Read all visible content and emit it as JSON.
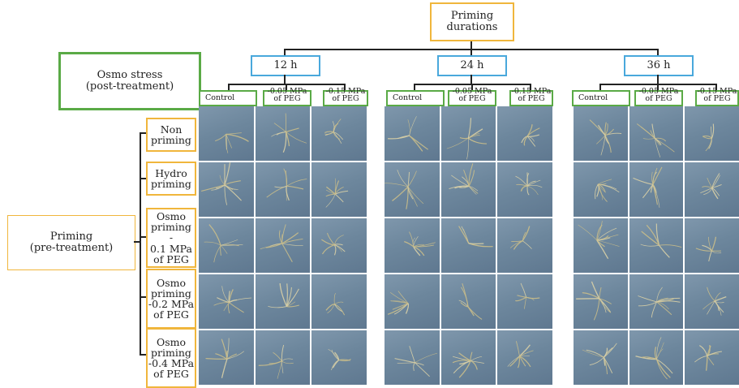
{
  "root": {
    "label_line1": "Priming",
    "label_line2": "durations"
  },
  "durations": [
    "12 h",
    "24 h",
    "36 h"
  ],
  "post_treatment": {
    "line1": "Osmo stress",
    "line2": "(post-treatment)"
  },
  "pre_treatment": {
    "line1": "Priming",
    "line2": "(pre-treatment)"
  },
  "stress_levels": {
    "control": "Control",
    "mpa005_line1": "-0.05 MPa",
    "mpa005_line2": "of PEG",
    "mpa015_line1": "-0.15 MPa",
    "mpa015_line2": "of PEG"
  },
  "priming_rows": [
    {
      "lines": [
        "Non",
        "priming"
      ]
    },
    {
      "lines": [
        "Hydro",
        "priming"
      ]
    },
    {
      "lines": [
        "Osmo",
        "priming -",
        "0.1 MPa",
        "of PEG"
      ]
    },
    {
      "lines": [
        "Osmo",
        "priming",
        "-0.2 MPa",
        "of PEG"
      ]
    },
    {
      "lines": [
        "Osmo",
        "priming",
        "-0.4 MPa",
        "of PEG"
      ]
    }
  ],
  "colors": {
    "orange": "#f0b63c",
    "blue": "#49a8dc",
    "green": "#5aaa46",
    "photo": "#6d879d"
  }
}
